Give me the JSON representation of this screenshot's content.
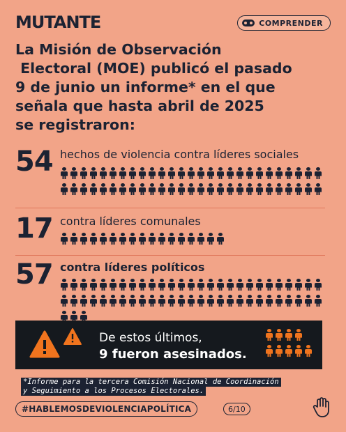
{
  "header": {
    "brand": "MUTANTE",
    "category_label": "COMPRENDER",
    "category_icon": "mask-icon"
  },
  "intro": {
    "lines": [
      "La Misión de Observación",
      " Electoral (MOE) publicó el pasado",
      "9 de junio un informe* en el que",
      "señala que hasta abril de 2025",
      "se registraron:"
    ]
  },
  "stats": [
    {
      "number": "54",
      "label": "hechos de violencia contra líderes sociales",
      "count": 54
    },
    {
      "number": "17",
      "label": "contra líderes comunales",
      "count": 17
    },
    {
      "number": "57",
      "label": "contra líderes políticos",
      "count": 57
    }
  ],
  "alert": {
    "line1": "De estos últimos,",
    "line2": "9 fueron asesinados.",
    "killed_count": 9,
    "accent_color": "#f0741e"
  },
  "footnote": {
    "lines": [
      "*Informe para la tercera Comisión Nacional de Coordinación",
      "y Seguimiento a los Procesos Electorales."
    ]
  },
  "footer": {
    "hashtag": "#HABLEMOSDEVIOLENCIAPOLÍTICA",
    "page": "6/10",
    "hand_icon": "raised-hand-icon"
  },
  "colors": {
    "background": "#f2a488",
    "ink": "#1c2232",
    "alert_bg": "#15191e",
    "accent": "#f0741e"
  }
}
